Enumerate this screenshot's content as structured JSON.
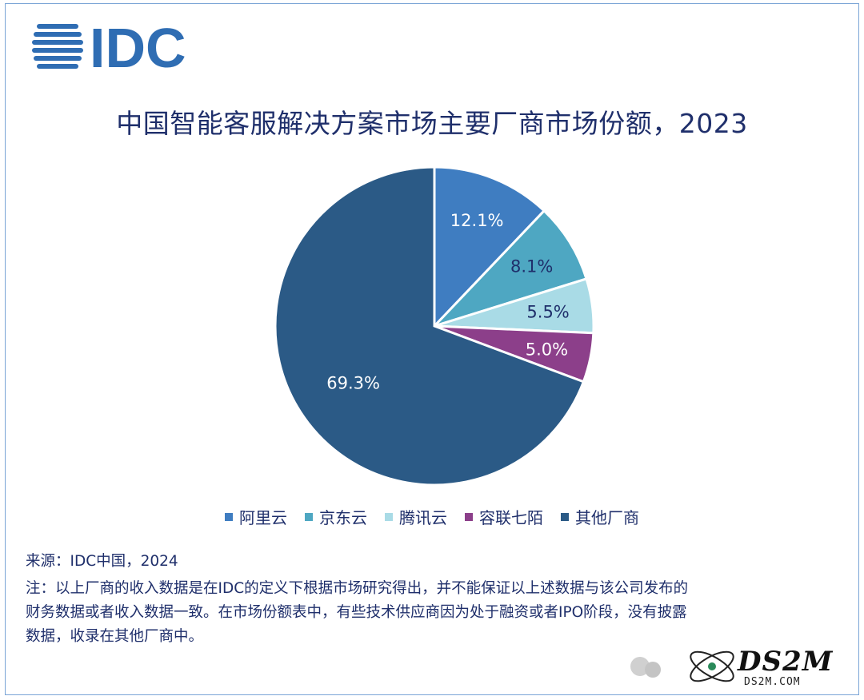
{
  "logo": {
    "text": "IDC",
    "color": "#2f6db3"
  },
  "chart_data": {
    "type": "pie",
    "title": "中国智能客服解决方案市场主要厂商市场份额，2023",
    "slices": [
      {
        "name": "阿里云",
        "value": 12.1,
        "label": "12.1%",
        "color": "#3f7dc1",
        "label_color": "#ffffff"
      },
      {
        "name": "京东云",
        "value": 8.1,
        "label": "8.1%",
        "color": "#4ea7c2",
        "label_color": "#1f2f6b"
      },
      {
        "name": "腾讯云",
        "value": 5.5,
        "label": "5.5%",
        "color": "#a9dbe6",
        "label_color": "#1f2f6b"
      },
      {
        "name": "容联七陌",
        "value": 5.0,
        "label": "5.0%",
        "color": "#8c3f8a",
        "label_color": "#ffffff"
      },
      {
        "name": "其他厂商",
        "value": 69.3,
        "label": "69.3%",
        "color": "#2b5a86",
        "label_color": "#ffffff"
      }
    ],
    "start_angle_deg": 0,
    "direction": "clockwise",
    "legend_position": "bottom"
  },
  "notes": {
    "source": "来源：IDC中国，2024",
    "note_lines": [
      "注：以上厂商的收入数据是在IDC的定义下根据市场研究得出，并不能保证以上述数据与该公司发布的",
      "财务数据或者收入数据一致。在市场份额表中，有些技术供应商因为处于融资或者IPO阶段，没有披露",
      "数据，收录在其他厂商中。"
    ]
  },
  "watermark": {
    "brand": "DS2M",
    "site": "DS2M.COM"
  }
}
